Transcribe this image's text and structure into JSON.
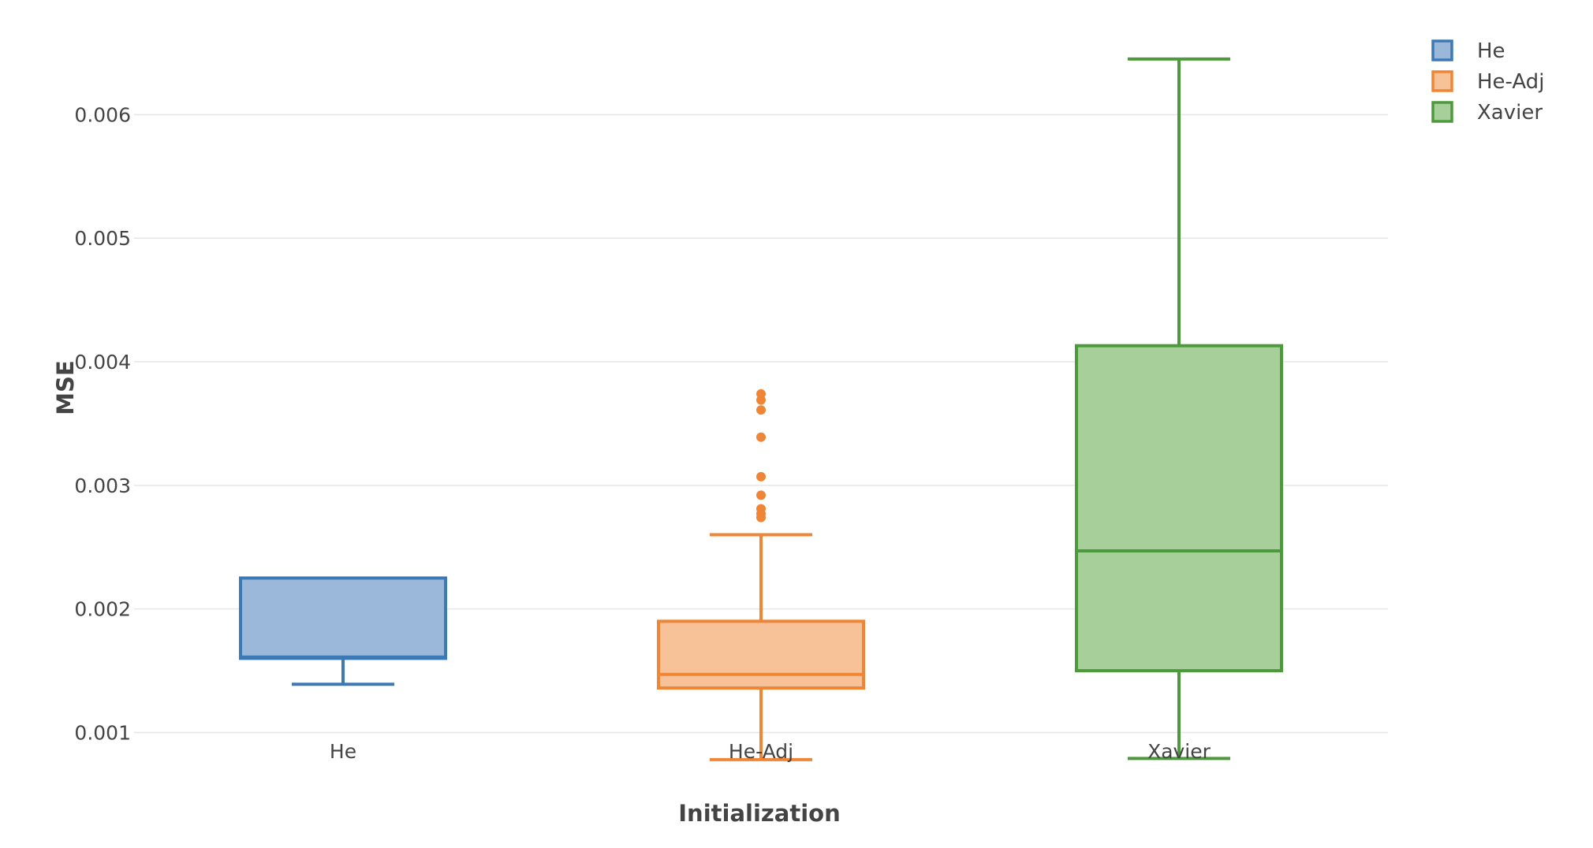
{
  "chart_data": {
    "type": "box",
    "title": "",
    "xlabel": "Initialization",
    "ylabel": "MSE",
    "ylim": [
      0.00055,
      0.0068
    ],
    "yticks": [
      0.001,
      0.002,
      0.003,
      0.004,
      0.005,
      0.006
    ],
    "ytick_labels": [
      "0.001",
      "0.002",
      "0.003",
      "0.004",
      "0.005",
      "0.006"
    ],
    "grid": true,
    "legend_position": "top-right",
    "categories": [
      "He",
      "He-Adj",
      "Xavier"
    ],
    "series": [
      {
        "name": "He",
        "color": "#3d79b4",
        "fill": "#9bb7d9",
        "whisker_low": 0.00139,
        "q1": 0.0016,
        "median": 0.00161,
        "q3": 0.00225,
        "whisker_high": 0.00225,
        "outliers": []
      },
      {
        "name": "He-Adj",
        "color": "#ef8637",
        "fill": "#f7c298",
        "whisker_low": 0.00078,
        "q1": 0.00136,
        "median": 0.00147,
        "q3": 0.0019,
        "whisker_high": 0.0026,
        "outliers": [
          0.00274,
          0.00277,
          0.00281,
          0.00292,
          0.00307,
          0.00339,
          0.00361,
          0.00369,
          0.00374
        ]
      },
      {
        "name": "Xavier",
        "color": "#4d9a3c",
        "fill": "#a7cf9a",
        "whisker_low": 0.00079,
        "q1": 0.0015,
        "median": 0.00247,
        "q3": 0.00413,
        "whisker_high": 0.00645,
        "outliers": []
      }
    ]
  }
}
